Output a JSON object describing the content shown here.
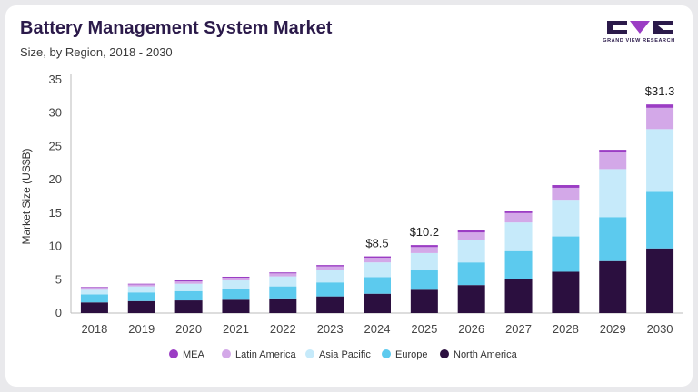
{
  "header": {
    "title": "Battery Management System Market",
    "subtitle": "Size, by Region, 2018 - 2030"
  },
  "logo": {
    "text": "GRAND VIEW RESEARCH"
  },
  "chart_data": {
    "type": "bar",
    "stacked": true,
    "ylabel": "Market Size (US$B)",
    "ylim": [
      0,
      35
    ],
    "yticks": [
      0,
      5,
      10,
      15,
      20,
      25,
      30,
      35
    ],
    "grid": false,
    "legend_position": "bottom",
    "categories": [
      "2018",
      "2019",
      "2020",
      "2021",
      "2022",
      "2023",
      "2024",
      "2025",
      "2026",
      "2027",
      "2028",
      "2029",
      "2030"
    ],
    "series": [
      {
        "name": "North America",
        "color": "#2b0f3f",
        "values": [
          1.6,
          1.8,
          1.9,
          2.0,
          2.2,
          2.5,
          2.9,
          3.5,
          4.2,
          5.1,
          6.2,
          7.8,
          9.7
        ]
      },
      {
        "name": "Europe",
        "color": "#5ccaee",
        "values": [
          1.2,
          1.3,
          1.4,
          1.6,
          1.8,
          2.1,
          2.5,
          2.9,
          3.4,
          4.2,
          5.3,
          6.6,
          8.5
        ]
      },
      {
        "name": "Asia Pacific",
        "color": "#c6eafa",
        "values": [
          0.7,
          0.9,
          1.1,
          1.3,
          1.5,
          1.8,
          2.2,
          2.6,
          3.4,
          4.3,
          5.5,
          7.2,
          9.4
        ]
      },
      {
        "name": "Latin America",
        "color": "#d3a8e8",
        "values": [
          0.3,
          0.3,
          0.35,
          0.4,
          0.45,
          0.6,
          0.7,
          0.9,
          1.1,
          1.4,
          1.8,
          2.5,
          3.2
        ]
      },
      {
        "name": "MEA",
        "color": "#9b3dc4",
        "values": [
          0.1,
          0.1,
          0.15,
          0.15,
          0.15,
          0.2,
          0.2,
          0.3,
          0.3,
          0.3,
          0.4,
          0.4,
          0.5
        ]
      }
    ],
    "legend_order": [
      "MEA",
      "Latin America",
      "Asia Pacific",
      "Europe",
      "North America"
    ],
    "annotations": [
      {
        "category": "2024",
        "text": "$8.5"
      },
      {
        "category": "2025",
        "text": "$10.2"
      },
      {
        "category": "2030",
        "text": "$31.3"
      }
    ]
  }
}
